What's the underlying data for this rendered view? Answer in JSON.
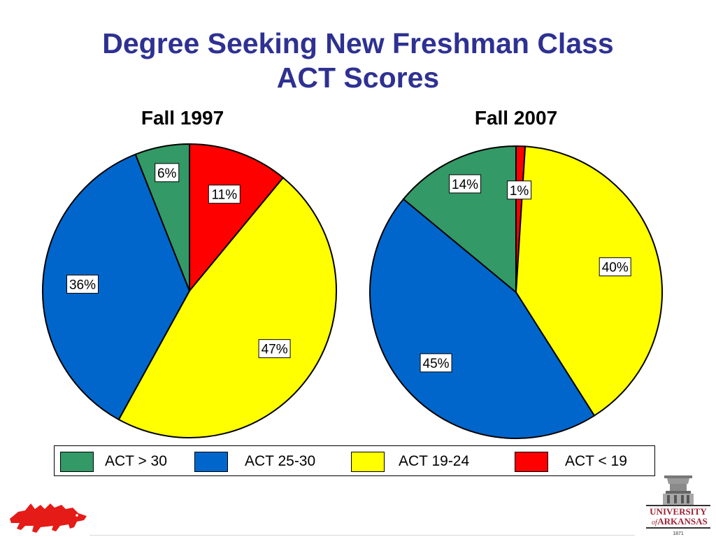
{
  "title_line1": "Degree Seeking New Freshman Class",
  "title_line2": "ACT Scores",
  "colors": {
    "title": "#2e3192",
    "act_gt_30": "#339966",
    "act_25_30": "#0066cc",
    "act_19_24": "#ffff00",
    "act_lt_19": "#ff0000"
  },
  "legend": [
    {
      "label": "ACT > 30",
      "color": "#339966"
    },
    {
      "label": "ACT 25-30",
      "color": "#0066cc"
    },
    {
      "label": "ACT 19-24",
      "color": "#ffff00"
    },
    {
      "label": "ACT < 19",
      "color": "#ff0000"
    }
  ],
  "chart_data": [
    {
      "type": "pie",
      "title": "Fall 1997",
      "slices": [
        {
          "category": "ACT < 19",
          "value": 11,
          "label": "11%"
        },
        {
          "category": "ACT 19-24",
          "value": 47,
          "label": "47%"
        },
        {
          "category": "ACT 25-30",
          "value": 36,
          "label": "36%"
        },
        {
          "category": "ACT > 30",
          "value": 6,
          "label": "6%"
        }
      ]
    },
    {
      "type": "pie",
      "title": "Fall 2007",
      "slices": [
        {
          "category": "ACT < 19",
          "value": 1,
          "label": "1%"
        },
        {
          "category": "ACT 19-24",
          "value": 40,
          "label": "40%"
        },
        {
          "category": "ACT 25-30",
          "value": 45,
          "label": "45%"
        },
        {
          "category": "ACT > 30",
          "value": 14,
          "label": "14%"
        }
      ]
    }
  ],
  "logo_text": {
    "university": "UNIVERSITY",
    "of": "of",
    "arkansas": "ARKANSAS",
    "year": "1871"
  }
}
